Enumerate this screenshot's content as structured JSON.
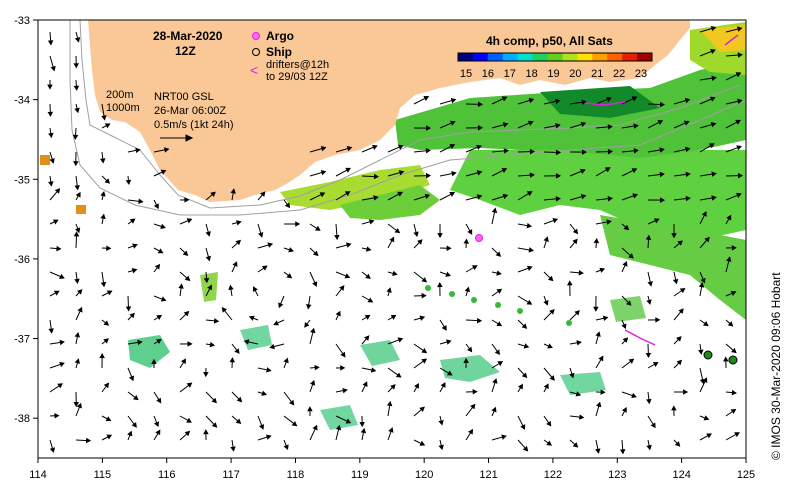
{
  "header": {
    "date": "28-Mar-2020",
    "hour": "12Z"
  },
  "legend": {
    "argo_label": "Argo",
    "ship_label": "Ship",
    "drifters_line1": "drifters@12h",
    "drifters_line2": "to 29/03 12Z",
    "colorbar_title": "4h comp, p50, All Sats",
    "colorbar_ticks": [
      "15",
      "16",
      "17",
      "18",
      "19",
      "20",
      "21",
      "22",
      "23"
    ],
    "colors": {
      "land": "#fac896",
      "argo": "#e020e0",
      "ship": "#1a8a1a",
      "drifter": "#e020e0"
    }
  },
  "info": {
    "contour1": "200m",
    "contour2": "1000m",
    "source": "NRT00 GSL",
    "source_date": "26-Mar 06:00Z",
    "scale": "0.5m/s (1kt 24h)"
  },
  "axes": {
    "x_ticks": [
      "114",
      "115",
      "116",
      "117",
      "118",
      "119",
      "120",
      "121",
      "122",
      "123",
      "124",
      "125"
    ],
    "y_ticks": [
      "-33",
      "-34",
      "-35",
      "-36",
      "-37",
      "-38"
    ],
    "lon_range": [
      114,
      125
    ],
    "lat_range": [
      -38.5,
      -33
    ]
  },
  "credit": "© IMOS 30-Mar-2020 09:06 Hobart"
}
